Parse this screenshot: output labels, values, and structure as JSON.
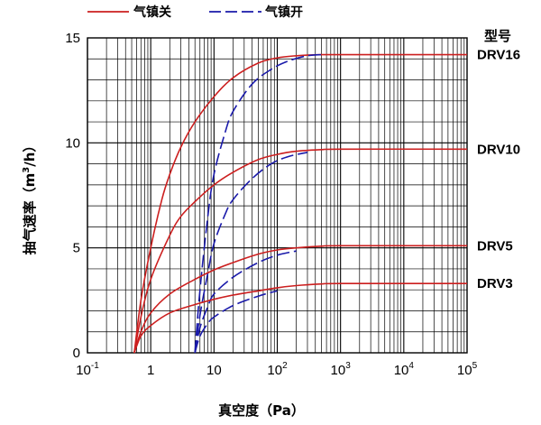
{
  "chart_data": {
    "type": "line",
    "xlabel": "真空度（Pa）",
    "ylabel": "抽气速率（m³/h）",
    "ylabel_parts": {
      "before": "抽气速率（m",
      "sup": "3",
      "after": "/h）"
    },
    "xscale": "log",
    "xlim": [
      0.1,
      100000
    ],
    "ylim": [
      0,
      15
    ],
    "yticks": [
      0,
      5,
      10,
      15
    ],
    "xticks": [
      {
        "base": "10",
        "exp": "-1",
        "value": 0.1
      },
      {
        "base": "1",
        "exp": "",
        "value": 1
      },
      {
        "base": "10",
        "exp": "",
        "value": 10
      },
      {
        "base": "10",
        "exp": "2",
        "value": 100
      },
      {
        "base": "10",
        "exp": "3",
        "value": 1000
      },
      {
        "base": "10",
        "exp": "4",
        "value": 10000
      },
      {
        "base": "10",
        "exp": "5",
        "value": 100000
      }
    ],
    "grid": true,
    "legend_position": "top-left",
    "legend": [
      {
        "label": "气镇关",
        "color": "#cc1f1f",
        "style": "solid"
      },
      {
        "label": "气镇开",
        "color": "#1a1aaa",
        "style": "dashed"
      }
    ],
    "model_header": "型号",
    "models": [
      {
        "name": "DRV16",
        "label_y": 14.2,
        "closed": [
          [
            0.55,
            0
          ],
          [
            0.7,
            2.5
          ],
          [
            1,
            5
          ],
          [
            1.5,
            7.3
          ],
          [
            2,
            8.5
          ],
          [
            3,
            9.8
          ],
          [
            5,
            11
          ],
          [
            10,
            12.2
          ],
          [
            20,
            13.1
          ],
          [
            50,
            13.8
          ],
          [
            100,
            14.05
          ],
          [
            200,
            14.15
          ],
          [
            500,
            14.2
          ],
          [
            1000,
            14.2
          ],
          [
            100000,
            14.2
          ]
        ],
        "open": [
          [
            5,
            0
          ],
          [
            6,
            3
          ],
          [
            8,
            6.5
          ],
          [
            10,
            8.5
          ],
          [
            15,
            10.5
          ],
          [
            20,
            11.5
          ],
          [
            40,
            12.8
          ],
          [
            80,
            13.5
          ],
          [
            150,
            13.9
          ],
          [
            300,
            14.15
          ],
          [
            500,
            14.2
          ]
        ]
      },
      {
        "name": "DRV10",
        "label_y": 9.7,
        "closed": [
          [
            0.55,
            0
          ],
          [
            0.7,
            1.7
          ],
          [
            1,
            3.5
          ],
          [
            2,
            5.6
          ],
          [
            3,
            6.5
          ],
          [
            5,
            7.2
          ],
          [
            10,
            8.0
          ],
          [
            20,
            8.6
          ],
          [
            50,
            9.2
          ],
          [
            100,
            9.45
          ],
          [
            200,
            9.6
          ],
          [
            500,
            9.68
          ],
          [
            1000,
            9.7
          ],
          [
            100000,
            9.7
          ]
        ],
        "open": [
          [
            5,
            0
          ],
          [
            6,
            1.8
          ],
          [
            8,
            3.8
          ],
          [
            10,
            5.2
          ],
          [
            15,
            6.6
          ],
          [
            20,
            7.3
          ],
          [
            40,
            8.3
          ],
          [
            80,
            9.0
          ],
          [
            150,
            9.35
          ],
          [
            300,
            9.55
          ]
        ]
      },
      {
        "name": "DRV5",
        "label_y": 5.1,
        "closed": [
          [
            0.55,
            0
          ],
          [
            0.7,
            1.0
          ],
          [
            1,
            1.9
          ],
          [
            2,
            2.8
          ],
          [
            5,
            3.5
          ],
          [
            10,
            3.95
          ],
          [
            20,
            4.3
          ],
          [
            50,
            4.7
          ],
          [
            100,
            4.9
          ],
          [
            200,
            5.0
          ],
          [
            500,
            5.08
          ],
          [
            1000,
            5.1
          ],
          [
            100000,
            5.1
          ]
        ],
        "open": [
          [
            5,
            0
          ],
          [
            6,
            1.2
          ],
          [
            8,
            2.2
          ],
          [
            10,
            2.8
          ],
          [
            20,
            3.6
          ],
          [
            50,
            4.3
          ],
          [
            100,
            4.65
          ],
          [
            200,
            4.85
          ]
        ]
      },
      {
        "name": "DRV3",
        "label_y": 3.3,
        "closed": [
          [
            0.55,
            0
          ],
          [
            0.7,
            0.8
          ],
          [
            1,
            1.3
          ],
          [
            2,
            1.9
          ],
          [
            5,
            2.3
          ],
          [
            10,
            2.55
          ],
          [
            20,
            2.75
          ],
          [
            50,
            2.95
          ],
          [
            100,
            3.1
          ],
          [
            200,
            3.2
          ],
          [
            500,
            3.28
          ],
          [
            1000,
            3.3
          ],
          [
            100000,
            3.3
          ]
        ],
        "open": [
          [
            5,
            0
          ],
          [
            6,
            0.8
          ],
          [
            8,
            1.4
          ],
          [
            10,
            1.7
          ],
          [
            20,
            2.25
          ],
          [
            50,
            2.7
          ],
          [
            100,
            2.95
          ]
        ]
      }
    ]
  }
}
